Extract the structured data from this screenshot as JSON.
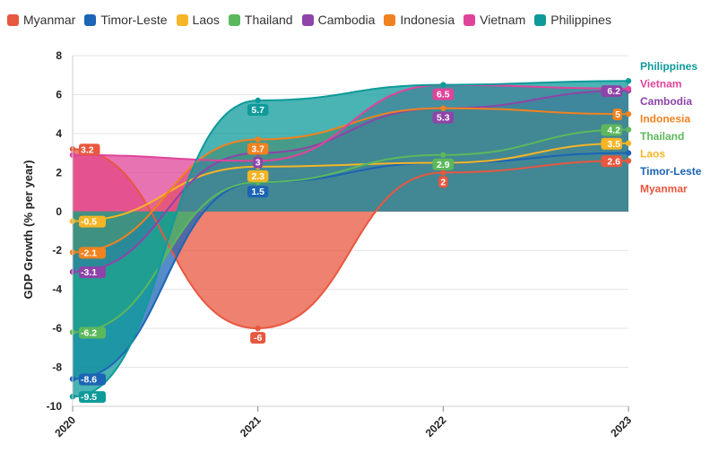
{
  "chart_data": {
    "type": "area",
    "xlabel": "",
    "ylabel": "GDP Growth (% per year)",
    "x": [
      "2020",
      "2021",
      "2022",
      "2023"
    ],
    "ylim": [
      -10,
      8
    ],
    "yticks": [
      "8",
      "6",
      "4",
      "2",
      "0",
      "-2",
      "-4",
      "-6",
      "-8",
      "-10"
    ],
    "grid": "horizontal",
    "legend_position": "top",
    "series": [
      {
        "name": "Myanmar",
        "color": "#e8573f",
        "values": [
          3.2,
          -6,
          2,
          2.6
        ],
        "labels": [
          "3.2",
          "-6",
          "2",
          "2.6"
        ]
      },
      {
        "name": "Timor-Leste",
        "color": "#1c64b5",
        "values": [
          -8.6,
          1.5,
          2.5,
          3.0
        ],
        "labels": [
          "-8.6",
          "1.5",
          "",
          ""
        ]
      },
      {
        "name": "Laos",
        "color": "#f5b526",
        "values": [
          -0.5,
          2.3,
          2.5,
          3.5
        ],
        "labels": [
          "-0.5",
          "2.3",
          "",
          "3.5"
        ]
      },
      {
        "name": "Thailand",
        "color": "#5cb85c",
        "values": [
          -6.2,
          1.5,
          2.9,
          4.2
        ],
        "labels": [
          "-6.2",
          "",
          "2.9",
          "4.2"
        ]
      },
      {
        "name": "Cambodia",
        "color": "#8e44a8",
        "values": [
          -3.1,
          3,
          5.3,
          6.2
        ],
        "labels": [
          "-3.1",
          "3",
          "5.3",
          "6.2"
        ]
      },
      {
        "name": "Indonesia",
        "color": "#f0821f",
        "values": [
          -2.1,
          3.7,
          5.3,
          5
        ],
        "labels": [
          "-2.1",
          "3.7",
          "",
          "5"
        ]
      },
      {
        "name": "Vietnam",
        "color": "#e0449a",
        "values": [
          2.9,
          2.6,
          6.5,
          6.3
        ],
        "labels": [
          "",
          "",
          "6.5",
          ""
        ]
      },
      {
        "name": "Philippines",
        "color": "#0e9a9a",
        "values": [
          -9.5,
          5.7,
          6.5,
          6.7
        ],
        "labels": [
          "-9.5",
          "5.7",
          "",
          ""
        ]
      }
    ],
    "end_labels": [
      "Philippines",
      "Vietnam",
      "Cambodia",
      "Indonesia",
      "Thailand",
      "Laos",
      "Timor-Leste",
      "Myanmar"
    ]
  }
}
